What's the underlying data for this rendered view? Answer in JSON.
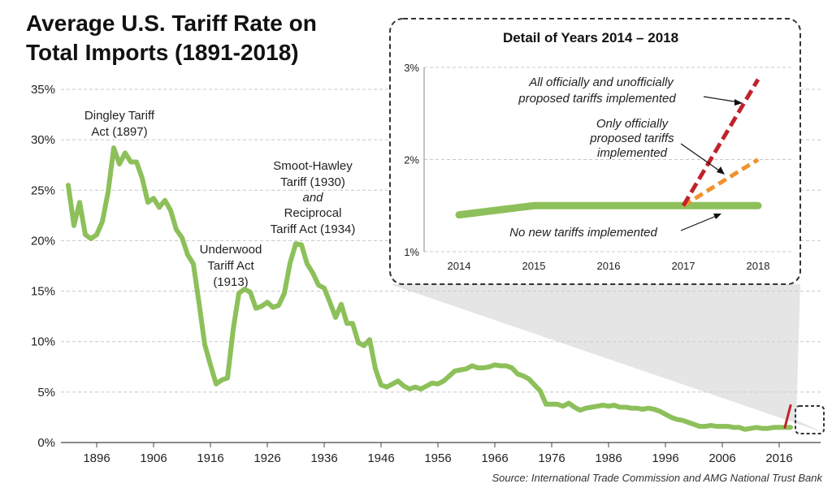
{
  "title_line1": "Average U.S. Tariff Rate on",
  "title_line2": "Total Imports (1891-2018)",
  "source": "Source: International Trade Commission and AMG National Trust Bank",
  "colors": {
    "main_line": "#8dc05a",
    "red_dash": "#c0232a",
    "orange_dash": "#f0922e",
    "grid": "#c8c8c8"
  },
  "annotations": {
    "dingley": [
      "Dingley Tariff",
      "Act (1897)"
    ],
    "underwood": [
      "Underwood",
      "Tariff Act",
      "(1913)"
    ],
    "smoot": [
      "Smoot-Hawley",
      "Tariff (1930)",
      "and",
      "Reciprocal",
      "Tariff Act (1934)"
    ]
  },
  "chart_data": [
    {
      "type": "line",
      "title": "Average U.S. Tariff Rate on Total Imports (1891-2018)",
      "xlabel": "",
      "ylabel": "",
      "xlim": [
        1891,
        2018
      ],
      "ylim": [
        0,
        35
      ],
      "x_ticks": [
        1896,
        1906,
        1916,
        1926,
        1936,
        1946,
        1956,
        1966,
        1976,
        1986,
        1996,
        2006,
        2016
      ],
      "y_ticks": [
        0,
        5,
        10,
        15,
        20,
        25,
        30,
        35
      ],
      "y_tick_labels": [
        "0%",
        "5%",
        "10%",
        "15%",
        "20%",
        "25%",
        "30%",
        "35%"
      ],
      "grid": "horizontal dashed",
      "series": [
        {
          "x": [
            1891,
            1892,
            1893,
            1894,
            1895,
            1896,
            1897,
            1898,
            1899,
            1900,
            1901,
            1902,
            1903,
            1904,
            1905,
            1906,
            1907,
            1908,
            1909,
            1910,
            1911,
            1912,
            1913,
            1914,
            1915,
            1916,
            1917,
            1918,
            1919,
            1920,
            1921,
            1922,
            1923,
            1924,
            1925,
            1926,
            1927,
            1928,
            1929,
            1930,
            1931,
            1932,
            1933,
            1934,
            1935,
            1936,
            1937,
            1938,
            1939,
            1940,
            1941,
            1942,
            1943,
            1944,
            1945,
            1946,
            1947,
            1948,
            1949,
            1950,
            1951,
            1952,
            1953,
            1954,
            1955,
            1956,
            1957,
            1958,
            1959,
            1960,
            1961,
            1962,
            1963,
            1964,
            1965,
            1966,
            1967,
            1968,
            1969,
            1970,
            1971,
            1972,
            1973,
            1974,
            1975,
            1976,
            1977,
            1978,
            1979,
            1980,
            1981,
            1982,
            1983,
            1984,
            1985,
            1986,
            1987,
            1988,
            1989,
            1990,
            1991,
            1992,
            1993,
            1994,
            1995,
            1996,
            1997,
            1998,
            1999,
            2000,
            2001,
            2002,
            2003,
            2004,
            2005,
            2006,
            2007,
            2008,
            2009,
            2010,
            2011,
            2012,
            2013,
            2014,
            2015,
            2016,
            2017,
            2018
          ],
          "values": [
            25.5,
            21.5,
            23.8,
            20.6,
            20.2,
            20.6,
            21.9,
            24.8,
            29.2,
            27.6,
            28.7,
            27.8,
            27.8,
            26.2,
            23.8,
            24.2,
            23.3,
            24.0,
            23.0,
            21.1,
            20.3,
            18.6,
            17.7,
            13.8,
            9.7,
            7.7,
            5.8,
            6.2,
            6.4,
            11.2,
            14.8,
            15.2,
            14.9,
            13.3,
            13.5,
            13.9,
            13.4,
            13.6,
            14.8,
            17.8,
            19.7,
            19.6,
            17.7,
            16.8,
            15.6,
            15.3,
            13.9,
            12.4,
            13.7,
            11.8,
            11.8,
            9.9,
            9.6,
            10.2,
            7.3,
            5.7,
            5.5,
            5.8,
            6.1,
            5.6,
            5.3,
            5.5,
            5.3,
            5.6,
            5.9,
            5.8,
            6.1,
            6.6,
            7.1,
            7.2,
            7.3,
            7.6,
            7.4,
            7.4,
            7.5,
            7.7,
            7.6,
            7.6,
            7.4,
            6.8,
            6.6,
            6.3,
            5.7,
            5.1,
            3.8,
            3.8,
            3.8,
            3.6,
            3.9,
            3.5,
            3.2,
            3.4,
            3.5,
            3.6,
            3.7,
            3.6,
            3.7,
            3.5,
            3.5,
            3.4,
            3.4,
            3.3,
            3.4,
            3.3,
            3.1,
            2.8,
            2.5,
            2.3,
            2.2,
            2.0,
            1.8,
            1.6,
            1.6,
            1.7,
            1.6,
            1.6,
            1.6,
            1.5,
            1.5,
            1.3,
            1.4,
            1.5,
            1.4,
            1.4,
            1.5,
            1.5,
            1.5,
            1.5
          ]
        }
      ]
    },
    {
      "type": "line",
      "title": "Detail of Years 2014 – 2018",
      "xlim": [
        2014,
        2018
      ],
      "ylim": [
        1,
        3
      ],
      "x_ticks": [
        2014,
        2015,
        2016,
        2017,
        2018
      ],
      "y_ticks": [
        1,
        2,
        3
      ],
      "y_tick_labels": [
        "1%",
        "2%",
        "3%"
      ],
      "grid": "horizontal dashed",
      "series": [
        {
          "name": "No new tariffs implemented",
          "x": [
            2014,
            2015,
            2016,
            2017,
            2018
          ],
          "values": [
            1.4,
            1.5,
            1.5,
            1.5,
            1.5
          ]
        },
        {
          "name": "Only officially proposed tariffs implemented",
          "x": [
            2017,
            2018
          ],
          "values": [
            1.5,
            2.0
          ]
        },
        {
          "name": "All officially and unofficially proposed tariffs implemented",
          "x": [
            2017,
            2018
          ],
          "values": [
            1.5,
            2.87
          ]
        }
      ],
      "annotation_lines": {
        "red": [
          "All officially and unofficially",
          "proposed tariffs implemented"
        ],
        "orange": [
          "Only officially",
          "proposed tariffs",
          "implemented"
        ],
        "green": [
          "No new tariffs implemented"
        ]
      }
    }
  ]
}
